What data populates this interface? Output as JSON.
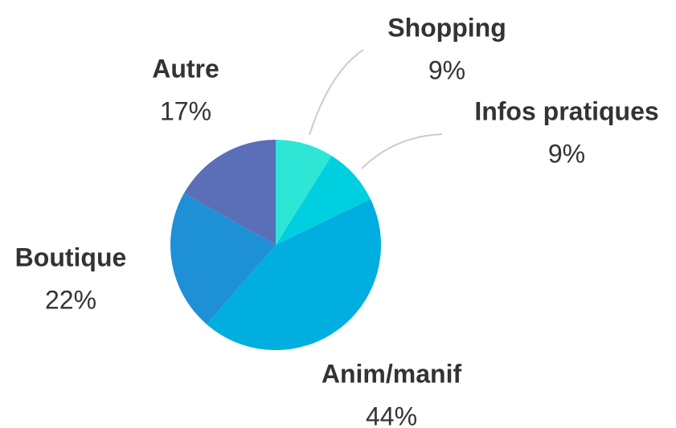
{
  "chart_data": {
    "type": "pie",
    "categories": [
      "Shopping",
      "Infos pratiques",
      "Anim/manif",
      "Boutique",
      "Autre"
    ],
    "values": [
      9,
      9,
      44,
      22,
      17
    ],
    "value_labels": [
      "9%",
      "9%",
      "44%",
      "22%",
      "17%"
    ],
    "colors": [
      "#2ee6d6",
      "#00cfe0",
      "#00aee0",
      "#1e90d6",
      "#5a6fb8"
    ]
  }
}
